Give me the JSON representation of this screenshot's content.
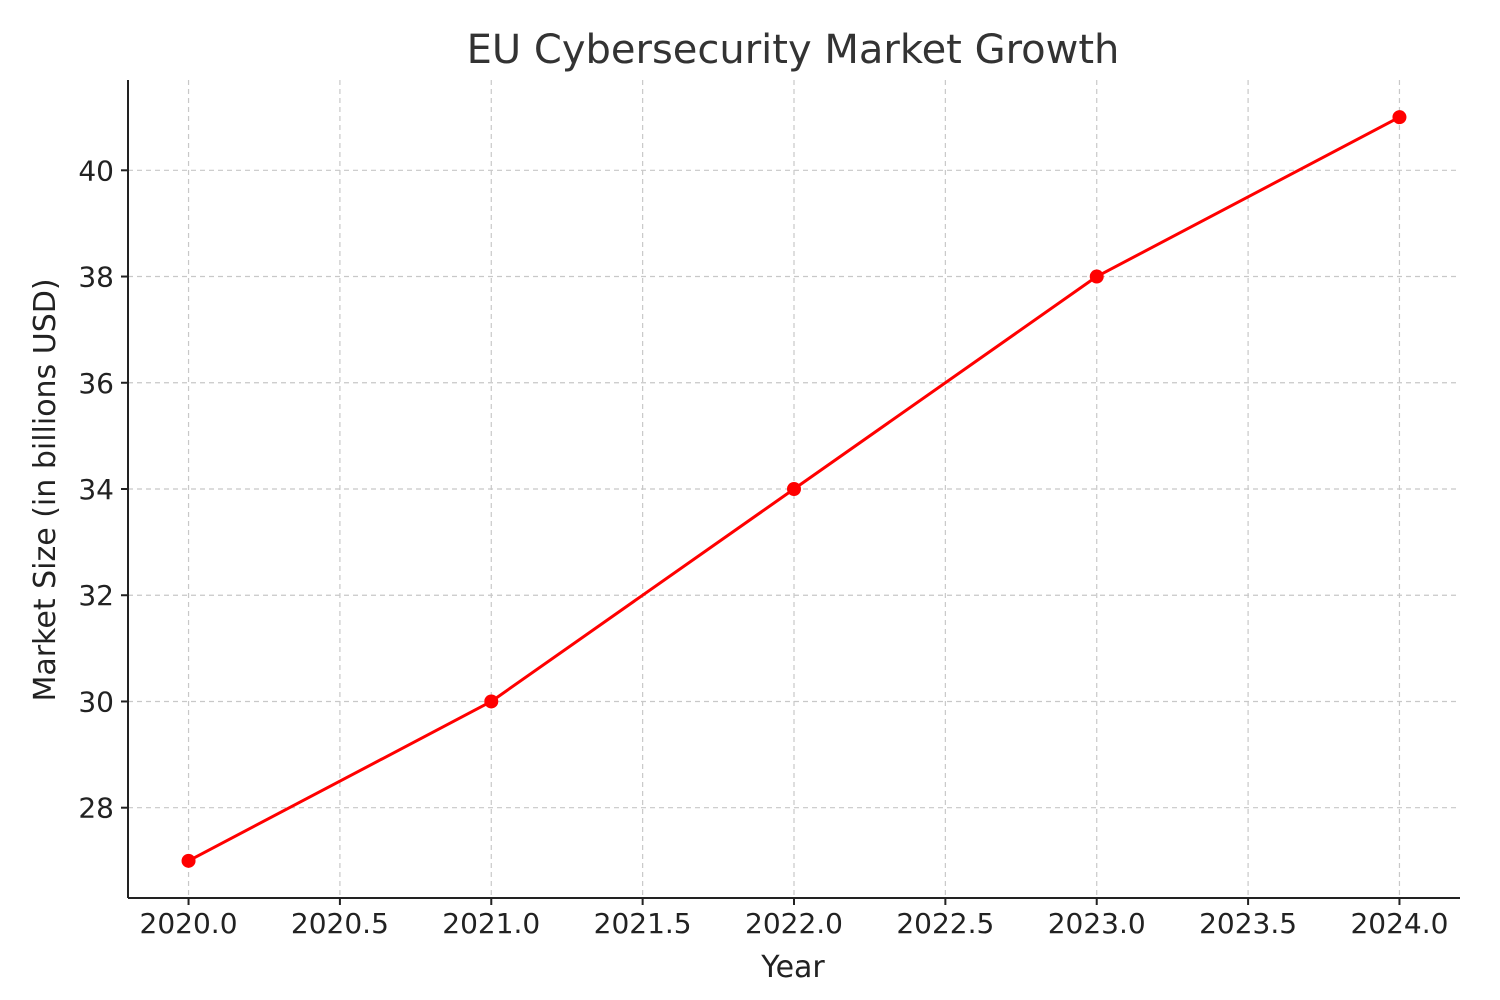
{
  "chart_data": {
    "type": "line",
    "title": "EU Cybersecurity Market Growth",
    "xlabel": "Year",
    "ylabel": "Market Size (in billions USD)",
    "xlim": [
      2019.8,
      2024.2
    ],
    "ylim": [
      26.3,
      41.7
    ],
    "x_ticks": [
      2020.0,
      2020.5,
      2021.0,
      2021.5,
      2022.0,
      2022.5,
      2023.0,
      2023.5,
      2024.0
    ],
    "x_tick_labels": [
      "2020.0",
      "2020.5",
      "2021.0",
      "2021.5",
      "2022.0",
      "2022.5",
      "2023.0",
      "2023.5",
      "2024.0"
    ],
    "y_ticks": [
      28,
      30,
      32,
      34,
      36,
      38,
      40
    ],
    "y_tick_labels": [
      "28",
      "30",
      "32",
      "34",
      "36",
      "38",
      "40"
    ],
    "grid": true,
    "series": [
      {
        "color": "#ff0000",
        "marker": "circle",
        "x": [
          2020,
          2021,
          2022,
          2023,
          2024
        ],
        "values": [
          27,
          30,
          34,
          38,
          41
        ]
      }
    ]
  }
}
